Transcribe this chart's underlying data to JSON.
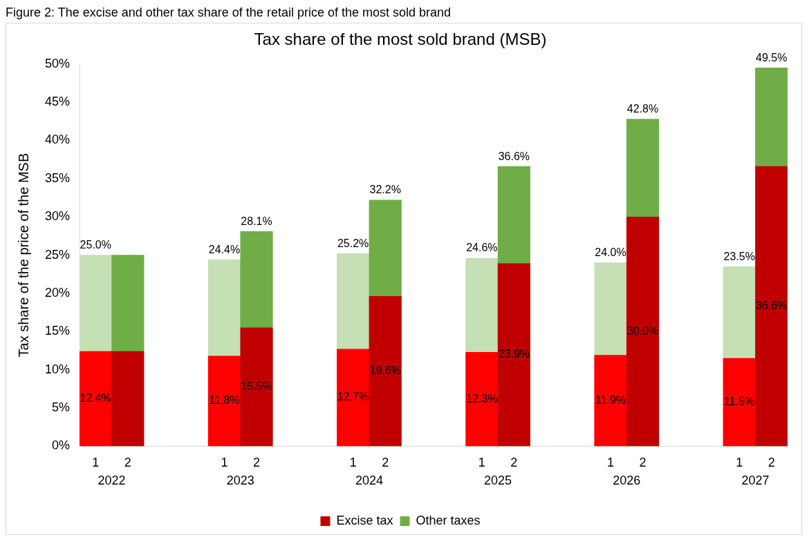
{
  "chart_data": {
    "type": "bar",
    "title": "Tax share of the most sold brand (MSB)",
    "ylabel": "Tax share of the price of the MSB",
    "annotations": [
      "Figure 2: The excise and other tax share of the retail price of the most sold brand",
      "2022",
      "2023",
      "2024",
      "2025",
      "2026",
      "2027"
    ],
    "categories": [
      "1",
      "2",
      null,
      null,
      "1",
      "2",
      null,
      null,
      "1",
      "2",
      null,
      null,
      "1",
      "2",
      null,
      null,
      "1",
      "2",
      null,
      null,
      "1",
      "2"
    ],
    "stacked": true,
    "series": [
      {
        "name": "Excise tax",
        "color": "#c00000",
        "colors": [
          "#ff0000",
          "#c00000",
          null,
          null,
          "#ff0000",
          "#c00000",
          null,
          null,
          "#ff0000",
          "#c00000",
          null,
          null,
          "#ff0000",
          "#c00000",
          null,
          null,
          "#ff0000",
          "#c00000",
          null,
          null,
          "#ff0000",
          "#c00000"
        ],
        "values": [
          12.4,
          12.4,
          null,
          null,
          11.8,
          15.5,
          null,
          null,
          12.7,
          19.6,
          null,
          null,
          12.3,
          23.9,
          null,
          null,
          11.9,
          30.0,
          null,
          null,
          11.5,
          36.6
        ],
        "value_labels": [
          "12.4%",
          null,
          null,
          null,
          "11.8%",
          "15.5%",
          null,
          null,
          "12.7%",
          "19.6%",
          null,
          null,
          "12.3%",
          "23.9%",
          null,
          null,
          "11.9%",
          "30.0%",
          null,
          null,
          "11.5%",
          "36.6%"
        ]
      },
      {
        "name": "Other taxes",
        "color": "#70ad47",
        "colors": [
          "#c5e0b4",
          "#70ad47",
          null,
          null,
          "#c5e0b4",
          "#70ad47",
          null,
          null,
          "#c5e0b4",
          "#70ad47",
          null,
          null,
          "#c5e0b4",
          "#70ad47",
          null,
          null,
          "#c5e0b4",
          "#70ad47",
          null,
          null,
          "#c5e0b4",
          "#70ad47"
        ],
        "values": [
          12.6,
          12.6,
          null,
          null,
          12.6,
          12.6,
          null,
          null,
          12.5,
          12.6,
          null,
          null,
          12.3,
          12.7,
          null,
          null,
          12.1,
          12.8,
          null,
          null,
          12.0,
          12.9
        ]
      }
    ],
    "totals": [
      "25.0%",
      null,
      null,
      null,
      "24.4%",
      "28.1%",
      null,
      null,
      "25.2%",
      "32.2%",
      null,
      null,
      "24.6%",
      "36.6%",
      null,
      null,
      "24.0%",
      "42.8%",
      null,
      null,
      "23.5%",
      "49.5%"
    ],
    "ylim": [
      0,
      50
    ],
    "yticks": [
      {
        "value": 0,
        "label": "0%"
      },
      {
        "value": 5,
        "label": "5%"
      },
      {
        "value": 10,
        "label": "10%"
      },
      {
        "value": 15,
        "label": "15%"
      },
      {
        "value": 20,
        "label": "20%"
      },
      {
        "value": 25,
        "label": "25%"
      },
      {
        "value": 30,
        "label": "30%"
      },
      {
        "value": 35,
        "label": "35%"
      },
      {
        "value": 40,
        "label": "40%"
      },
      {
        "value": 45,
        "label": "45%"
      },
      {
        "value": 50,
        "label": "50%"
      }
    ],
    "grid": false,
    "legend": "bottom"
  }
}
